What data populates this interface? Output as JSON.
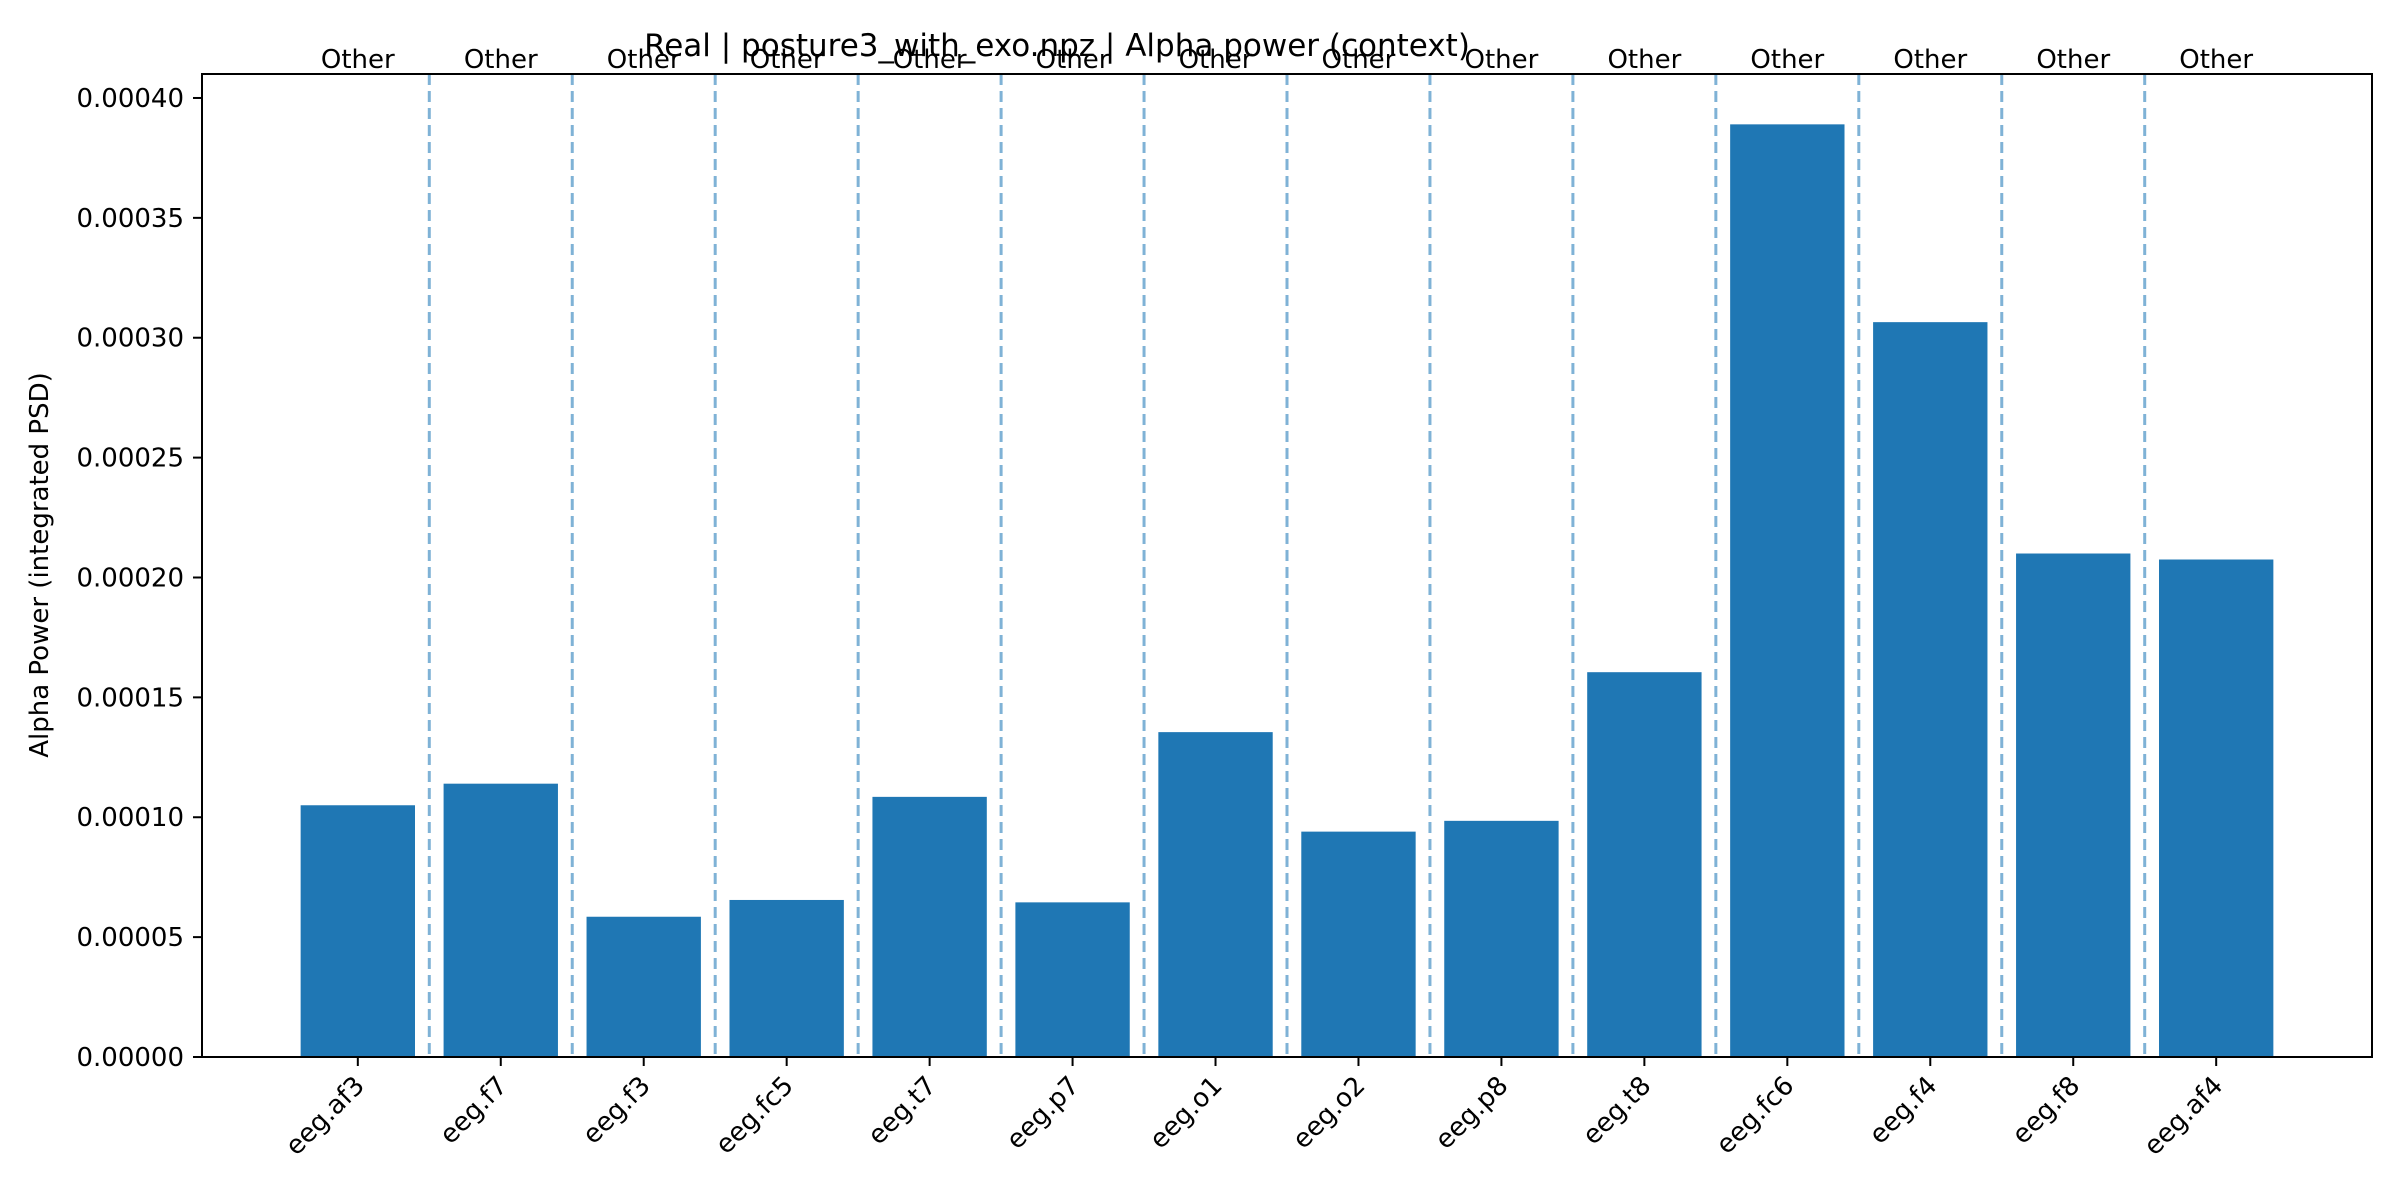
{
  "chart_data": {
    "type": "bar",
    "title": "Real | posture3_with_exo.npz | Alpha power (context)",
    "xlabel": "",
    "ylabel": "Alpha Power (integrated PSD)",
    "categories": [
      "eeg.af3",
      "eeg.f7",
      "eeg.f3",
      "eeg.fc5",
      "eeg.t7",
      "eeg.p7",
      "eeg.o1",
      "eeg.o2",
      "eeg.p8",
      "eeg.t8",
      "eeg.fc6",
      "eeg.f4",
      "eeg.f8",
      "eeg.af4"
    ],
    "values": [
      0.000105,
      0.000114,
      5.85e-05,
      6.55e-05,
      0.0001085,
      6.45e-05,
      0.0001355,
      9.4e-05,
      9.85e-05,
      0.0001605,
      0.000389,
      0.0003065,
      0.00021,
      0.0002075
    ],
    "group_labels": [
      "Other",
      "Other",
      "Other",
      "Other",
      "Other",
      "Other",
      "Other",
      "Other",
      "Other",
      "Other",
      "Other",
      "Other",
      "Other",
      "Other"
    ],
    "ylim": [
      0,
      0.00041
    ],
    "yticks": [
      "0.00000",
      "0.00005",
      "0.00010",
      "0.00015",
      "0.00020",
      "0.00025",
      "0.00030",
      "0.00035",
      "0.00040"
    ],
    "grid": false,
    "separators": "dashed",
    "colors": {
      "bar": "#1f77b4",
      "separator": "#7fb2d6",
      "axis": "#000000"
    }
  }
}
